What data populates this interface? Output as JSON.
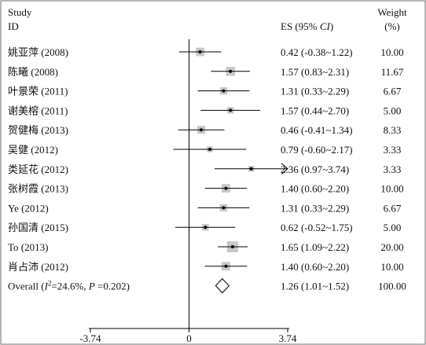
{
  "chart_data": {
    "type": "forest",
    "header": {
      "study": "Study",
      "id": "ID",
      "es": "ES (95% CI)",
      "weight": "Weight",
      "weight_unit": "(%)"
    },
    "axis": {
      "xlim": [
        -3.74,
        3.74
      ],
      "ticks": [
        -3.74,
        0,
        3.74
      ],
      "tick_labels": [
        "-3.74",
        "0",
        "3.74"
      ]
    },
    "studies": [
      {
        "label": "姚亚萍 (2008)",
        "es": 0.42,
        "lo": -0.38,
        "hi": 1.22,
        "ci_text": "0.42 (-0.38~1.22)",
        "weight": 10.0,
        "weight_text": "10.00"
      },
      {
        "label": "陈曦 (2008)",
        "es": 1.57,
        "lo": 0.83,
        "hi": 2.31,
        "ci_text": "1.57 (0.83~2.31)",
        "weight": 11.67,
        "weight_text": "11.67"
      },
      {
        "label": "叶景荣 (2011)",
        "es": 1.31,
        "lo": 0.33,
        "hi": 2.29,
        "ci_text": "1.31 (0.33~2.29)",
        "weight": 6.67,
        "weight_text": "6.67"
      },
      {
        "label": "谢美榕 (2011)",
        "es": 1.57,
        "lo": 0.44,
        "hi": 2.7,
        "ci_text": "1.57 (0.44~2.70)",
        "weight": 5.0,
        "weight_text": "5.00"
      },
      {
        "label": "贺健梅 (2013)",
        "es": 0.46,
        "lo": -0.41,
        "hi": 1.34,
        "ci_text": "0.46 (-0.41~1.34)",
        "weight": 8.33,
        "weight_text": "8.33"
      },
      {
        "label": "吴健 (2012)",
        "es": 0.79,
        "lo": -0.6,
        "hi": 2.17,
        "ci_text": "0.79 (-0.60~2.17)",
        "weight": 3.33,
        "weight_text": "3.33"
      },
      {
        "label": "类延花 (2012)",
        "es": 2.36,
        "lo": 0.97,
        "hi": 3.74,
        "ci_text": "2.36 (0.97~3.74)",
        "weight": 3.33,
        "weight_text": "3.33",
        "arrow": true
      },
      {
        "label": "张树霞 (2013)",
        "es": 1.4,
        "lo": 0.6,
        "hi": 2.2,
        "ci_text": "1.40 (0.60~2.20)",
        "weight": 10.0,
        "weight_text": "10.00"
      },
      {
        "label": "Ye (2012)",
        "es": 1.31,
        "lo": 0.33,
        "hi": 2.29,
        "ci_text": "1.31 (0.33~2.29)",
        "weight": 6.67,
        "weight_text": "6.67"
      },
      {
        "label": "孙国清 (2015)",
        "es": 0.62,
        "lo": -0.52,
        "hi": 1.75,
        "ci_text": "0.62 (-0.52~1.75)",
        "weight": 5.0,
        "weight_text": "5.00"
      },
      {
        "label": "To (2013)",
        "es": 1.65,
        "lo": 1.09,
        "hi": 2.22,
        "ci_text": "1.65 (1.09~2.22)",
        "weight": 20.0,
        "weight_text": "20.00"
      },
      {
        "label": "肖占沛 (2012)",
        "es": 1.4,
        "lo": 0.6,
        "hi": 2.2,
        "ci_text": "1.40 (0.60~2.20)",
        "weight": 10.0,
        "weight_text": "10.00"
      }
    ],
    "overall": {
      "label_prefix": "Overall  (",
      "i2_symbol": "I",
      "i2_text": "=24.6%, ",
      "p_symbol": "P",
      "p_text": " =0.202)",
      "es": 1.26,
      "lo": 1.01,
      "hi": 1.52,
      "ci_text": "1.26 (1.01~1.52)",
      "weight_text": "100.00"
    },
    "colors": {
      "line": "#000000",
      "box": "#c8c8c8",
      "frame": "#6e6e6e"
    }
  }
}
